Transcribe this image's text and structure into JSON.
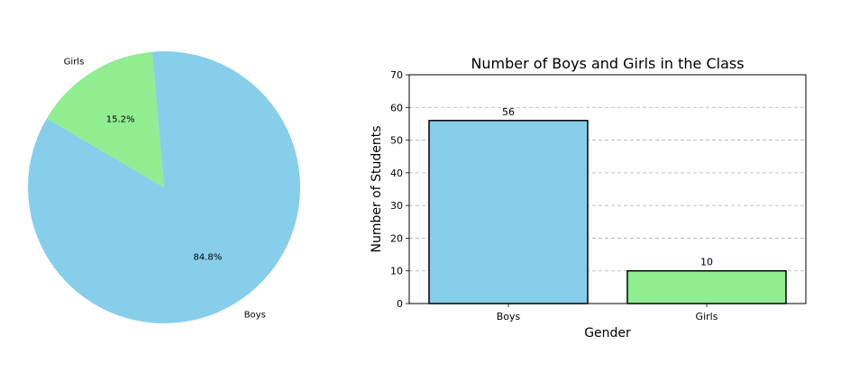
{
  "chart_data": [
    {
      "type": "pie",
      "labels": [
        "Boys",
        "Girls"
      ],
      "values": [
        56,
        10
      ],
      "percent_labels": [
        "84.8%",
        "15.2%"
      ],
      "colors": [
        "#87CEEB",
        "#90EE90"
      ]
    },
    {
      "type": "bar",
      "title": "Number of Boys and Girls in the Class",
      "xlabel": "Gender",
      "ylabel": "Number of Students",
      "categories": [
        "Boys",
        "Girls"
      ],
      "values": [
        56,
        10
      ],
      "value_labels": [
        "56",
        "10"
      ],
      "colors": [
        "#87CEEB",
        "#90EE90"
      ],
      "ylim": [
        0,
        70
      ],
      "yticks": [
        0,
        10,
        20,
        30,
        40,
        50,
        60,
        70
      ],
      "ytick_labels": [
        "0",
        "10",
        "20",
        "30",
        "40",
        "50",
        "60",
        "70"
      ],
      "grid": "y-dashed"
    }
  ]
}
